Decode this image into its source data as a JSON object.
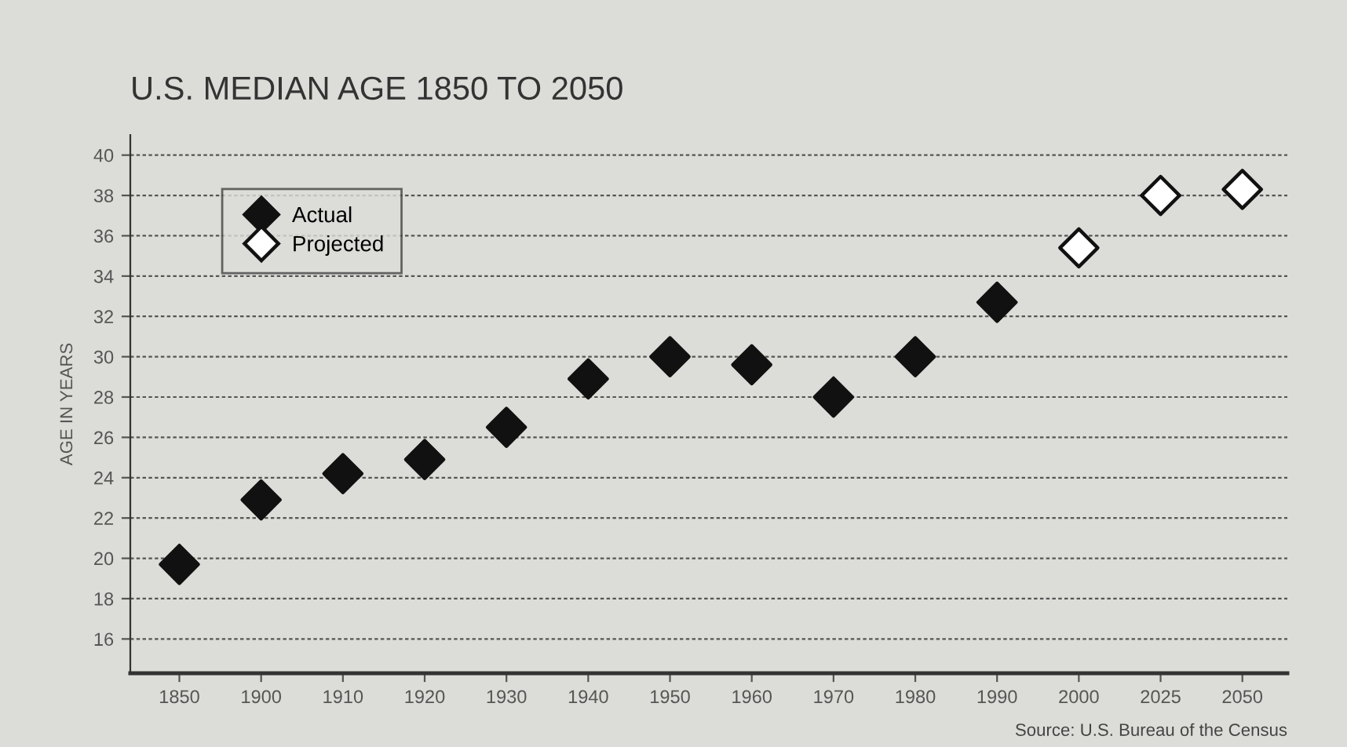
{
  "chart_data": {
    "type": "scatter",
    "title": "U.S. MEDIAN AGE 1850 TO 2050",
    "ylabel": "AGE IN YEARS",
    "categories": [
      "1850",
      "1900",
      "1910",
      "1920",
      "1930",
      "1940",
      "1950",
      "1960",
      "1970",
      "1980",
      "1990",
      "2000",
      "2025",
      "2050"
    ],
    "series": [
      {
        "name": "Actual",
        "color": "#111111",
        "values": [
          19.7,
          22.9,
          24.2,
          24.9,
          26.5,
          28.9,
          30.0,
          29.6,
          28.0,
          30.0,
          32.7,
          null,
          null,
          null
        ]
      },
      {
        "name": "Projected",
        "color": "#ffffff",
        "values": [
          null,
          null,
          null,
          null,
          null,
          null,
          null,
          null,
          null,
          null,
          null,
          35.4,
          38.0,
          38.3
        ]
      }
    ],
    "ylim": [
      14.3,
      41
    ],
    "yticks": [
      16,
      18,
      20,
      22,
      24,
      26,
      28,
      30,
      32,
      34,
      36,
      38,
      40
    ],
    "grid": "y",
    "legend": "top left",
    "marker": "diamond",
    "annotations": [
      "Source: U.S. Bureau of the Census"
    ]
  }
}
